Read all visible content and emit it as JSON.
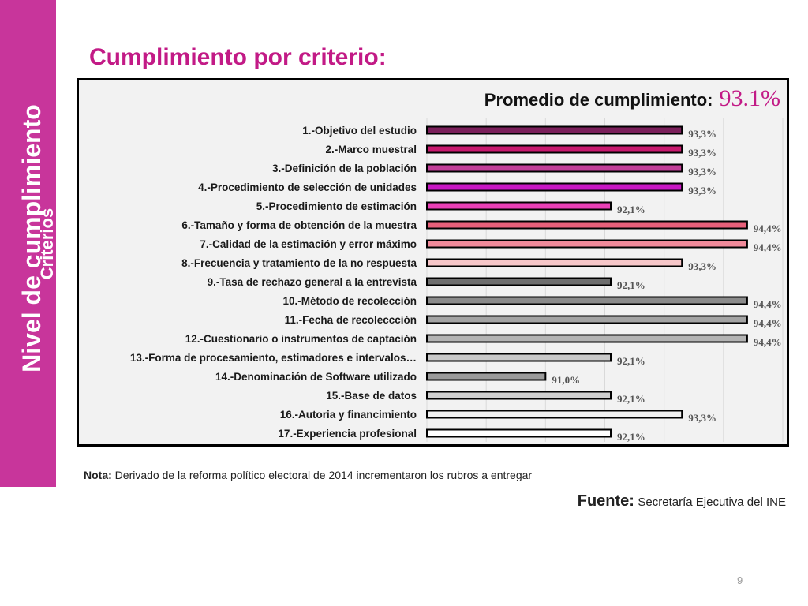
{
  "sidebar": {
    "main_text": "Nivel de cumplimiento",
    "sub_text": "Criterios"
  },
  "title": "Cumplimiento por criterio:",
  "average": {
    "label": "Promedio de cumplimiento:",
    "value": "93.1%"
  },
  "nota": {
    "label": "Nota:",
    "text": "Derivado de la reforma político electoral de 2014 incrementaron los rubros a entregar"
  },
  "fuente": {
    "label": "Fuente:",
    "text": "Secretaría Ejecutiva del INE"
  },
  "page_number": "9",
  "chart_data": {
    "type": "bar",
    "orientation": "horizontal",
    "categories": [
      "1.-Objetivo del estudio",
      "2.-Marco muestral",
      "3.-Definición de la población",
      "4.-Procedimiento de selección de unidades",
      "5.-Procedimiento de estimación",
      "6.-Tamaño y forma de obtención de la muestra",
      "7.-Calidad de la estimación y error máximo",
      "8.-Frecuencia y tratamiento de la no respuesta",
      "9.-Tasa de rechazo general a la entrevista",
      "10.-Método de recolección",
      "11.-Fecha de recoleccción",
      "12.-Cuestionario o instrumentos de captación",
      "13.-Forma de procesamiento, estimadores e intervalos…",
      "14.-Denominación de Software utilizado",
      "15.-Base de datos",
      "16.-Autoria y financimiento",
      "17.-Experiencia profesional"
    ],
    "values": [
      93.3,
      93.3,
      93.3,
      93.3,
      92.1,
      94.4,
      94.4,
      93.3,
      92.1,
      94.4,
      94.4,
      94.4,
      92.1,
      91.0,
      92.1,
      93.3,
      92.1
    ],
    "data_labels": [
      "93,3%",
      "93,3%",
      "93,3%",
      "93,3%",
      "92,1%",
      "94,4%",
      "94,4%",
      "93,3%",
      "92,1%",
      "94,4%",
      "94,4%",
      "94,4%",
      "92,1%",
      "91,0%",
      "92,1%",
      "93,3%",
      "92,1%"
    ],
    "colors": [
      "#7a1f5a",
      "#c8196e",
      "#c13e98",
      "#c817c4",
      "#e940b6",
      "#e8607a",
      "#f08a9a",
      "#f7c7c9",
      "#6e6e6e",
      "#8a8a8a",
      "#a3a3a3",
      "#b3b3b3",
      "#c9c9c9",
      "#9a9a9a",
      "#cfcfcf",
      "#f0f0f0",
      "#ffffff"
    ],
    "xlim": [
      89,
      95
    ],
    "grid": true,
    "title": "",
    "xlabel": "",
    "ylabel": ""
  }
}
